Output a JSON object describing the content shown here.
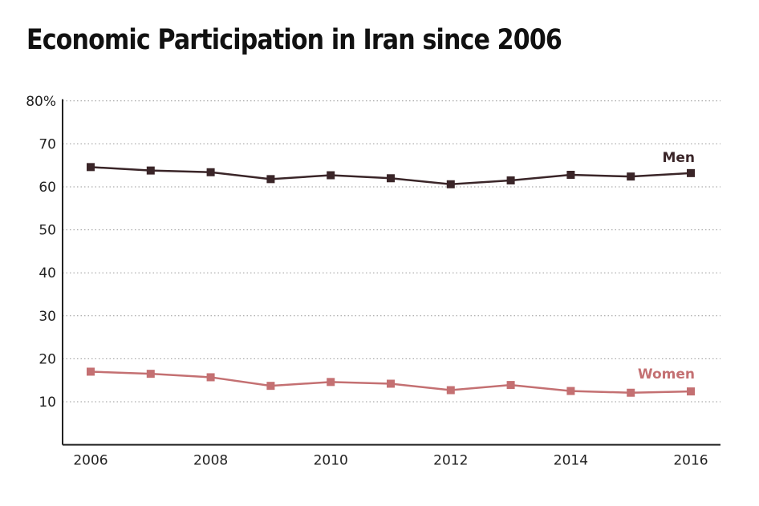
{
  "chart_data": {
    "type": "line",
    "title": "Economic Participation in Iran since 2006",
    "x": [
      2006,
      2007,
      2008,
      2009,
      2010,
      2011,
      2012,
      2013,
      2014,
      2015,
      2016
    ],
    "x_tick_labels": [
      "2006",
      "2008",
      "2010",
      "2012",
      "2014",
      "2016"
    ],
    "y_tick_labels": [
      "80%",
      "70",
      "60",
      "50",
      "40",
      "30",
      "20",
      "10"
    ],
    "ylim": [
      0,
      80
    ],
    "grid": "horizontal dotted",
    "series": [
      {
        "name": "Men",
        "color": "#3a2528",
        "values": [
          64.6,
          63.8,
          63.4,
          61.8,
          62.7,
          62.0,
          60.6,
          61.5,
          62.8,
          62.4,
          63.2
        ]
      },
      {
        "name": "Women",
        "color": "#c47072",
        "values": [
          17.0,
          16.5,
          15.7,
          13.7,
          14.6,
          14.2,
          12.7,
          13.9,
          12.5,
          12.1,
          12.4
        ]
      }
    ]
  }
}
